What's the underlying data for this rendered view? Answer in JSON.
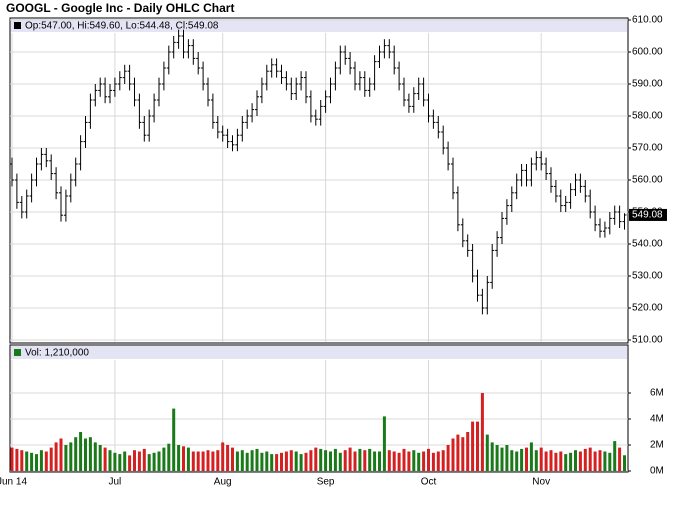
{
  "chart_data": {
    "type": "ohlc",
    "title": "GOOGL - Google Inc - Daily OHLC Chart",
    "price_legend": "Op:547.00, Hi:549.60, Lo:544.48, Cl:549.08",
    "volume_legend": "Vol: 1,210,000",
    "categories": [
      "Jun 14",
      null,
      null,
      null,
      null,
      null,
      null,
      null,
      null,
      null,
      null,
      null,
      null,
      null,
      null,
      null,
      null,
      null,
      null,
      null,
      null,
      "Jul",
      null,
      null,
      null,
      null,
      null,
      null,
      null,
      null,
      null,
      null,
      null,
      null,
      null,
      null,
      null,
      null,
      null,
      null,
      null,
      null,
      null,
      "Aug",
      null,
      null,
      null,
      null,
      null,
      null,
      null,
      null,
      null,
      null,
      null,
      null,
      null,
      null,
      null,
      null,
      null,
      null,
      null,
      null,
      "Sep",
      null,
      null,
      null,
      null,
      null,
      null,
      null,
      null,
      null,
      null,
      null,
      null,
      null,
      null,
      null,
      null,
      null,
      null,
      null,
      null,
      "Oct",
      null,
      null,
      null,
      null,
      null,
      null,
      null,
      null,
      null,
      null,
      null,
      null,
      null,
      null,
      null,
      null,
      null,
      null,
      null,
      null,
      null,
      null,
      "Nov",
      null,
      null,
      null,
      null,
      null,
      null,
      null,
      null,
      null,
      null,
      null,
      null,
      null,
      null,
      null,
      null,
      null
    ],
    "open": [
      565,
      560,
      553,
      550,
      555,
      560,
      565,
      568,
      566,
      562,
      556,
      549,
      555,
      560,
      565,
      572,
      578,
      585,
      588,
      590,
      586,
      588,
      590,
      592,
      594,
      590,
      585,
      578,
      574,
      580,
      585,
      590,
      595,
      600,
      603,
      605,
      600,
      602,
      598,
      595,
      590,
      585,
      578,
      575,
      574,
      572,
      571,
      574,
      578,
      580,
      582,
      586,
      590,
      594,
      596,
      594,
      592,
      590,
      587,
      590,
      592,
      586,
      580,
      579,
      583,
      586,
      590,
      595,
      600,
      598,
      595,
      590,
      592,
      588,
      590,
      597,
      600,
      602,
      600,
      595,
      590,
      585,
      583,
      587,
      590,
      585,
      580,
      578,
      575,
      570,
      565,
      556,
      546,
      541,
      538,
      530,
      524,
      520,
      528,
      538,
      542,
      548,
      552,
      556,
      560,
      563,
      560,
      565,
      567,
      565,
      562,
      558,
      555,
      552,
      553,
      557,
      560,
      558,
      555,
      550,
      546,
      544,
      545,
      548,
      550,
      547
    ],
    "high": [
      567,
      562,
      555,
      557,
      562,
      567,
      570,
      570,
      568,
      564,
      558,
      557,
      562,
      567,
      574,
      580,
      587,
      590,
      592,
      592,
      590,
      592,
      594,
      596,
      596,
      592,
      587,
      580,
      582,
      587,
      592,
      597,
      602,
      605,
      607,
      607,
      604,
      604,
      600,
      597,
      592,
      587,
      580,
      577,
      576,
      574,
      576,
      580,
      582,
      584,
      588,
      592,
      596,
      598,
      598,
      596,
      594,
      592,
      592,
      594,
      594,
      588,
      582,
      585,
      588,
      592,
      597,
      602,
      602,
      600,
      597,
      594,
      594,
      592,
      599,
      602,
      604,
      604,
      602,
      597,
      592,
      587,
      589,
      592,
      592,
      587,
      582,
      580,
      577,
      572,
      567,
      558,
      548,
      543,
      540,
      532,
      526,
      530,
      540,
      544,
      550,
      554,
      558,
      562,
      565,
      565,
      567,
      569,
      569,
      567,
      564,
      560,
      557,
      555,
      559,
      562,
      562,
      560,
      557,
      552,
      548,
      547,
      550,
      552,
      552,
      549.6
    ],
    "low": [
      558,
      551,
      548,
      548,
      553,
      558,
      563,
      564,
      560,
      554,
      547,
      547,
      553,
      558,
      563,
      570,
      576,
      583,
      586,
      584,
      584,
      586,
      588,
      590,
      588,
      583,
      576,
      572,
      572,
      578,
      583,
      588,
      593,
      598,
      601,
      598,
      598,
      596,
      593,
      588,
      583,
      576,
      573,
      572,
      570,
      569,
      569,
      572,
      576,
      578,
      580,
      584,
      588,
      592,
      592,
      590,
      588,
      585,
      585,
      588,
      584,
      578,
      577,
      577,
      581,
      584,
      588,
      593,
      596,
      593,
      588,
      588,
      586,
      586,
      588,
      595,
      598,
      598,
      593,
      588,
      583,
      581,
      581,
      585,
      583,
      578,
      576,
      573,
      568,
      563,
      554,
      544,
      539,
      536,
      528,
      522,
      518,
      518,
      526,
      536,
      540,
      546,
      550,
      554,
      558,
      558,
      558,
      563,
      563,
      560,
      556,
      553,
      550,
      550,
      551,
      555,
      556,
      553,
      548,
      544,
      542,
      542,
      543,
      546,
      545,
      544.48
    ],
    "close": [
      560,
      553,
      550,
      555,
      560,
      565,
      568,
      566,
      562,
      556,
      549,
      555,
      560,
      565,
      572,
      578,
      585,
      588,
      590,
      586,
      588,
      590,
      592,
      594,
      590,
      585,
      578,
      574,
      580,
      585,
      590,
      595,
      600,
      603,
      605,
      600,
      602,
      598,
      595,
      590,
      585,
      578,
      575,
      574,
      572,
      571,
      574,
      578,
      580,
      582,
      586,
      590,
      594,
      596,
      594,
      592,
      590,
      587,
      590,
      592,
      586,
      580,
      579,
      583,
      586,
      590,
      595,
      600,
      598,
      595,
      590,
      592,
      588,
      590,
      597,
      600,
      602,
      600,
      595,
      590,
      585,
      583,
      587,
      590,
      585,
      580,
      578,
      575,
      570,
      565,
      556,
      546,
      541,
      538,
      530,
      524,
      520,
      528,
      538,
      542,
      548,
      552,
      556,
      560,
      563,
      560,
      565,
      567,
      565,
      562,
      558,
      555,
      552,
      553,
      557,
      560,
      558,
      555,
      550,
      546,
      544,
      545,
      548,
      550,
      547,
      549.08
    ],
    "volume": [
      1800000,
      1700000,
      1600000,
      1500000,
      1400000,
      1300000,
      1600000,
      1500000,
      1800000,
      2200000,
      2500000,
      2000000,
      2200000,
      2600000,
      3000000,
      2500000,
      2600000,
      2200000,
      2000000,
      1800000,
      1600000,
      1400000,
      1300000,
      1500000,
      1200000,
      1600000,
      1500000,
      1700000,
      1300000,
      1400000,
      1500000,
      1800000,
      2100000,
      4800000,
      2000000,
      1900000,
      1800000,
      1500000,
      1500000,
      1500000,
      1600000,
      1500000,
      1600000,
      2200000,
      2000000,
      1800000,
      1500000,
      1600000,
      1400000,
      1600000,
      1700000,
      1400000,
      1500000,
      1300000,
      1300000,
      1400000,
      1500000,
      1600000,
      1500000,
      1300000,
      1400000,
      1600000,
      1800000,
      1700000,
      1600000,
      1500000,
      1700000,
      1400000,
      1600000,
      1800000,
      1500000,
      1700000,
      1600000,
      1700000,
      1500000,
      1500000,
      4200000,
      1600000,
      1500000,
      1400000,
      1700000,
      1500000,
      1600000,
      1400000,
      1500000,
      1700000,
      1400000,
      1500000,
      1600000,
      2000000,
      2500000,
      2800000,
      2600000,
      3000000,
      3800000,
      3800000,
      6000000,
      2800000,
      2200000,
      2000000,
      1800000,
      2000000,
      1600000,
      1500000,
      1700000,
      1800000,
      2200000,
      1600000,
      1800000,
      1500000,
      1600000,
      1400000,
      1500000,
      1300000,
      1400000,
      1600000,
      1500000,
      1700000,
      1800000,
      1500000,
      1600000,
      1500000,
      1400000,
      2300000,
      1800000,
      1210000
    ],
    "bar_color": "#000000",
    "up_color": "#1a7a1a",
    "down_color": "#d42020",
    "ylim": [
      510,
      610
    ],
    "yticks": [
      {
        "value": 510,
        "label": "510.00"
      },
      {
        "value": 520,
        "label": "520.00"
      },
      {
        "value": 530,
        "label": "530.00"
      },
      {
        "value": 540,
        "label": "540.00"
      },
      {
        "value": 550,
        "label": "550.00"
      },
      {
        "value": 560,
        "label": "560.00"
      },
      {
        "value": 570,
        "label": "570.00"
      },
      {
        "value": 580,
        "label": "580.00"
      },
      {
        "value": 590,
        "label": "590.00"
      },
      {
        "value": 600,
        "label": "600.00"
      },
      {
        "value": 610,
        "label": "610.00"
      }
    ],
    "volume_ylim": [
      0,
      9500000
    ],
    "volume_yticks": [
      {
        "value": 0,
        "label": "0M"
      },
      {
        "value": 2000000,
        "label": "2M"
      },
      {
        "value": 4000000,
        "label": "4M"
      },
      {
        "value": 6000000,
        "label": "6M"
      }
    ],
    "grid": true
  }
}
